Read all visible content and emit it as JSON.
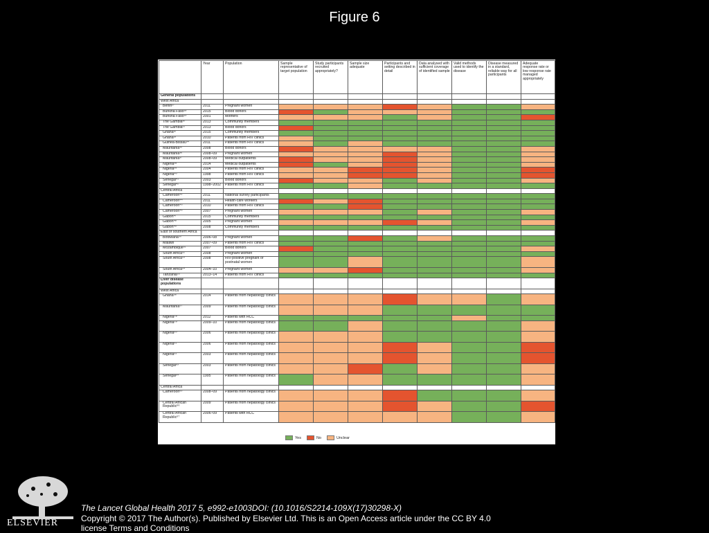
{
  "figure_title": "Figure 6",
  "columns": [
    "",
    "Year",
    "Population",
    "Sample representative of target population",
    "Study participants recruited appropriately?",
    "Sample size adequate",
    "Participants and setting described in detail",
    "Data analysed with sufficient coverage of identified sample",
    "Valid methods used to identify the disease",
    "Disease measured in a standard, reliable way for all participants",
    "Adequate response rate or low response rate managed appropriately"
  ],
  "rows": [
    {
      "kind": "section",
      "label": "General populations"
    },
    {
      "kind": "region",
      "label": "West Africa"
    },
    {
      "kind": "data",
      "study": "Benin²⁷",
      "year": "2011",
      "population": "Pregnant women",
      "ratings": "UUUNUYYU"
    },
    {
      "kind": "data",
      "study": "Burkina Faso²⁸",
      "year": "2015",
      "population": "Blood donors",
      "ratings": "NYUUUYYY"
    },
    {
      "kind": "data",
      "study": "Burkina Faso²⁹",
      "year": "2001",
      "population": "Mothers",
      "ratings": "UUUYUYYN"
    },
    {
      "kind": "data",
      "study": "The Gambia³⁰",
      "year": "2013",
      "population": "Community members",
      "ratings": "YYYYYYYY"
    },
    {
      "kind": "data",
      "study": "The Gambia³¹",
      "year": "2013",
      "population": "Blood donors",
      "ratings": "NYYYYYYY"
    },
    {
      "kind": "data",
      "study": "Ghana³²",
      "year": "2015",
      "population": "Community members",
      "ratings": "YYYYYYYY"
    },
    {
      "kind": "data",
      "study": "Ghana³³",
      "year": "2010",
      "population": "Patients from HIV clinics",
      "ratings": "UYYYYYYY"
    },
    {
      "kind": "data",
      "study": "Guinea-Bissau³⁴",
      "year": "2011",
      "population": "Patients from HIV clinics",
      "ratings": "UYUYYYYY"
    },
    {
      "kind": "data",
      "study": "Mauritania³⁵",
      "year": "2008",
      "population": "Blood donors",
      "ratings": "NUUUUYYU"
    },
    {
      "kind": "data",
      "study": "Mauritania³⁶",
      "year": "2008–09",
      "population": "Pregnant women",
      "ratings": "UUUNUYYU"
    },
    {
      "kind": "data",
      "study": "Mauritania³⁷",
      "year": "2008–09",
      "population": "Medical outpatients",
      "ratings": "NUUNUYYU"
    },
    {
      "kind": "data",
      "study": "Nigeria³⁸",
      "year": "2014",
      "population": "Medical outpatients",
      "ratings": "NYUNUYYU"
    },
    {
      "kind": "data",
      "study": "Nigeria³⁹",
      "year": "2004",
      "population": "Patients from HIV clinics",
      "ratings": "UUNNUYYN"
    },
    {
      "kind": "data",
      "study": "Nigeria⁴⁰",
      "year": "1998",
      "population": "Patients from HIV clinics",
      "ratings": "UUNNUYYN"
    },
    {
      "kind": "data",
      "study": "Senegal⁴¹",
      "year": "2003",
      "population": "Blood donors",
      "ratings": "NUUYUYYU"
    },
    {
      "kind": "data",
      "study": "Senegal⁴²",
      "year": "1998–2002",
      "population": "Patients from HIV clinics",
      "ratings": "YYUYYYYY"
    },
    {
      "kind": "region",
      "label": "Central Africa"
    },
    {
      "kind": "data",
      "study": "Cameroon⁴³",
      "year": "2011",
      "population": "National survey participants",
      "ratings": "YYYYYYYY"
    },
    {
      "kind": "data",
      "study": "Cameroon⁴⁴",
      "year": "2011",
      "population": "Health-care workers",
      "ratings": "NUNYYYYY"
    },
    {
      "kind": "data",
      "study": "Cameroon⁴⁵",
      "year": "2010",
      "population": "Patients from HIV clinics",
      "ratings": "YYNYYYYY"
    },
    {
      "kind": "data",
      "study": "Cameroon⁴⁶",
      "year": "2007",
      "population": "Pregnant women",
      "ratings": "UUUYUYYU"
    },
    {
      "kind": "data",
      "study": "Gabon⁴⁷",
      "year": "2015",
      "population": "Community members",
      "ratings": "YYYYYYYY"
    },
    {
      "kind": "data",
      "study": "Gabon⁴⁸",
      "year": "2005",
      "population": "Pregnant women",
      "ratings": "UUUNUYYU"
    },
    {
      "kind": "data",
      "study": "Gabon⁴⁹",
      "year": "2008",
      "population": "Community members",
      "ratings": "YYYYYYYY"
    },
    {
      "kind": "region",
      "label": "East or southern Africa"
    },
    {
      "kind": "data",
      "study": "Botswana⁵⁰",
      "year": "2006–08",
      "population": "Pregnant women",
      "ratings": "YYNYUYYY"
    },
    {
      "kind": "data",
      "study": "Malawi",
      "year": "2007–09",
      "population": "Patients from HIV clinics",
      "ratings": "YYYYYYYY"
    },
    {
      "kind": "data",
      "study": "Mozambique⁵¹",
      "year": "2007",
      "population": "Blood donors",
      "ratings": "NYYYYYYU"
    },
    {
      "kind": "data",
      "study": "South Africa⁵²",
      "year": "2008",
      "population": "Pregnant women",
      "ratings": "YYYYYYYY"
    },
    {
      "kind": "data",
      "study": "South Africa⁵³",
      "year": "2008",
      "population": "HIV-positive pregnant or postnatal women",
      "ratings": "YYUYYYYU",
      "tall": true
    },
    {
      "kind": "data",
      "study": "South Africa⁵⁴",
      "year": "2004–10",
      "population": "Pregnant women",
      "ratings": "UUNYYYYU"
    },
    {
      "kind": "data",
      "study": "Tanzania⁵⁵",
      "year": "2013–14",
      "population": "Patients from HIV clinics",
      "ratings": "YYYYYYYY"
    },
    {
      "kind": "section",
      "label": "Liver disease populations",
      "tall": true
    },
    {
      "kind": "region",
      "label": "West Africa"
    },
    {
      "kind": "data",
      "study": "Ghana⁵⁶",
      "year": "2014",
      "population": "Patients from hepatology clinics",
      "ratings": "UUUNUUYU",
      "tall": true
    },
    {
      "kind": "data",
      "study": "Mauritania⁵⁷",
      "year": "2009",
      "population": "Patients from hepatology clinics",
      "ratings": "UUUYYYYY",
      "tall": true
    },
    {
      "kind": "data",
      "study": "Nigeria⁵⁸",
      "year": "2012",
      "population": "Patients with HCC",
      "ratings": "YYYYYUYY"
    },
    {
      "kind": "data",
      "study": "Nigeria⁵⁹",
      "year": "2009–10",
      "population": "Patients from hepatology clinics",
      "ratings": "YYUYYYYU",
      "tall": true
    },
    {
      "kind": "data",
      "study": "Nigeria⁶⁰",
      "year": "2006",
      "population": "Patients from hepatology clinics",
      "ratings": "UUUYYYYU",
      "tall": true
    },
    {
      "kind": "data",
      "study": "Nigeria⁶¹",
      "year": "2006",
      "population": "Patients from hepatology clinics",
      "ratings": "UUUNUYYN",
      "tall": true
    },
    {
      "kind": "data",
      "study": "Nigeria⁶²",
      "year": "2003",
      "population": "Patients from hepatology clinics",
      "ratings": "UUUNUYYN",
      "tall": true
    },
    {
      "kind": "data",
      "study": "Senegal⁶³",
      "year": "2003",
      "population": "Patients from hepatology clinics",
      "ratings": "UUNYUYYU",
      "tall": true
    },
    {
      "kind": "data",
      "study": "Senegal⁶⁴",
      "year": "1995",
      "population": "Patients from hepatology clinics",
      "ratings": "YUUYYYYU",
      "tall": true
    },
    {
      "kind": "region",
      "label": "Central Africa"
    },
    {
      "kind": "data",
      "study": "Cameroon⁶⁵",
      "year": "2008–09",
      "population": "Patients from hepatology clinics",
      "ratings": "UUUNYYYU",
      "tall": true
    },
    {
      "kind": "data",
      "study": "Central African Republic⁶⁶",
      "year": "2009",
      "population": "Patients from hepatology clinics",
      "ratings": "UUUNUYYN",
      "tall": true
    },
    {
      "kind": "data",
      "study": "Central African Republic⁶⁷",
      "year": "2006–09",
      "population": "Patients with HCC",
      "ratings": "UUUUUYYU",
      "tall": true
    }
  ],
  "legend": [
    {
      "code": "Y",
      "label": "Yes",
      "color": "#76b05a"
    },
    {
      "code": "N",
      "label": "No",
      "color": "#e4542f"
    },
    {
      "code": "U",
      "label": "Unclear",
      "color": "#f7b481"
    }
  ],
  "citation": "The Lancet Global Health 2017 5, e992-e1003DOI: (10.1016/S2214-109X(17)30298-X)",
  "copyright": "Copyright © 2017 The Author(s). Published by Elsevier Ltd. This is an Open Access article under the CC BY 4.0 license",
  "links": "Terms and Conditions",
  "publisher_logo": "ELSEVIER"
}
